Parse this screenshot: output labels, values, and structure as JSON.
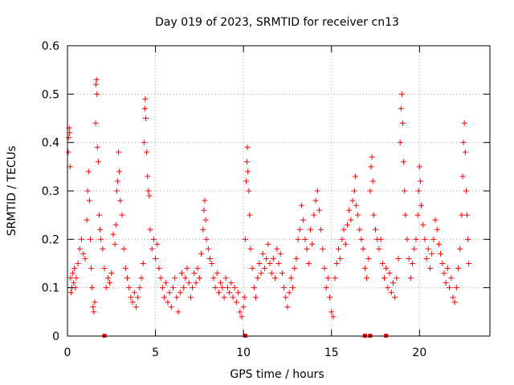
{
  "chart_data": {
    "type": "scatter",
    "title": "Day 019 of 2023, SRMTID for receiver cn13",
    "xlabel": "GPS time / hours",
    "ylabel": "SRMTID / TECUs",
    "xlim": [
      0,
      24
    ],
    "ylim": [
      0,
      0.6
    ],
    "x_ticks": [
      0,
      5,
      10,
      15,
      20
    ],
    "x_tick_labels": [
      "0",
      "5",
      "10",
      "15",
      "20"
    ],
    "y_ticks": [
      0,
      0.1,
      0.2,
      0.3,
      0.4,
      0.5,
      0.6
    ],
    "y_tick_labels": [
      "0",
      "0.1",
      "0.2",
      "0.3",
      "0.4",
      "0.5",
      "0.6"
    ],
    "grid": true,
    "marker": "+",
    "color": "#ff0000",
    "series": [
      {
        "name": "SRMTID",
        "points": [
          [
            0.05,
            0.38
          ],
          [
            0.08,
            0.41
          ],
          [
            0.1,
            0.43
          ],
          [
            0.12,
            0.42
          ],
          [
            0.15,
            0.35
          ],
          [
            0.18,
            0.12
          ],
          [
            0.2,
            0.09
          ],
          [
            0.25,
            0.1
          ],
          [
            0.3,
            0.13
          ],
          [
            0.35,
            0.11
          ],
          [
            0.4,
            0.14
          ],
          [
            0.45,
            0.1
          ],
          [
            0.5,
            0.12
          ],
          [
            0.6,
            0.15
          ],
          [
            0.7,
            0.18
          ],
          [
            0.8,
            0.2
          ],
          [
            0.9,
            0.17
          ],
          [
            1.0,
            0.16
          ],
          [
            1.1,
            0.24
          ],
          [
            1.15,
            0.3
          ],
          [
            1.2,
            0.34
          ],
          [
            1.25,
            0.28
          ],
          [
            1.3,
            0.2
          ],
          [
            1.35,
            0.14
          ],
          [
            1.4,
            0.1
          ],
          [
            1.45,
            0.06
          ],
          [
            1.5,
            0.05
          ],
          [
            1.55,
            0.07
          ],
          [
            1.6,
            0.44
          ],
          [
            1.62,
            0.52
          ],
          [
            1.65,
            0.53
          ],
          [
            1.68,
            0.5
          ],
          [
            1.7,
            0.39
          ],
          [
            1.75,
            0.36
          ],
          [
            1.8,
            0.25
          ],
          [
            1.85,
            0.22
          ],
          [
            1.9,
            0.2
          ],
          [
            2.0,
            0.18
          ],
          [
            2.1,
            0.14
          ],
          [
            2.2,
            0.1
          ],
          [
            2.3,
            0.12
          ],
          [
            2.4,
            0.11
          ],
          [
            2.5,
            0.13
          ],
          [
            2.6,
            0.21
          ],
          [
            2.7,
            0.19
          ],
          [
            2.75,
            0.23
          ],
          [
            2.8,
            0.3
          ],
          [
            2.85,
            0.32
          ],
          [
            2.9,
            0.38
          ],
          [
            2.95,
            0.34
          ],
          [
            3.0,
            0.28
          ],
          [
            3.1,
            0.25
          ],
          [
            3.2,
            0.18
          ],
          [
            3.3,
            0.14
          ],
          [
            3.4,
            0.12
          ],
          [
            3.5,
            0.1
          ],
          [
            3.6,
            0.08
          ],
          [
            3.7,
            0.07
          ],
          [
            3.8,
            0.09
          ],
          [
            3.9,
            0.06
          ],
          [
            4.0,
            0.08
          ],
          [
            4.1,
            0.1
          ],
          [
            4.2,
            0.12
          ],
          [
            4.3,
            0.15
          ],
          [
            4.35,
            0.4
          ],
          [
            4.4,
            0.47
          ],
          [
            4.42,
            0.49
          ],
          [
            4.45,
            0.45
          ],
          [
            4.5,
            0.38
          ],
          [
            4.55,
            0.33
          ],
          [
            4.6,
            0.3
          ],
          [
            4.65,
            0.29
          ],
          [
            4.7,
            0.22
          ],
          [
            4.8,
            0.18
          ],
          [
            4.9,
            0.2
          ],
          [
            5.0,
            0.16
          ],
          [
            5.1,
            0.19
          ],
          [
            5.2,
            0.14
          ],
          [
            5.3,
            0.12
          ],
          [
            5.4,
            0.1
          ],
          [
            5.5,
            0.08
          ],
          [
            5.6,
            0.11
          ],
          [
            5.7,
            0.07
          ],
          [
            5.8,
            0.09
          ],
          [
            5.9,
            0.06
          ],
          [
            6.0,
            0.1
          ],
          [
            6.1,
            0.12
          ],
          [
            6.2,
            0.08
          ],
          [
            6.3,
            0.05
          ],
          [
            6.4,
            0.09
          ],
          [
            6.5,
            0.13
          ],
          [
            6.6,
            0.1
          ],
          [
            6.7,
            0.12
          ],
          [
            6.8,
            0.14
          ],
          [
            6.9,
            0.11
          ],
          [
            7.0,
            0.08
          ],
          [
            7.1,
            0.1
          ],
          [
            7.2,
            0.13
          ],
          [
            7.3,
            0.11
          ],
          [
            7.4,
            0.14
          ],
          [
            7.5,
            0.12
          ],
          [
            7.6,
            0.17
          ],
          [
            7.7,
            0.22
          ],
          [
            7.75,
            0.26
          ],
          [
            7.8,
            0.28
          ],
          [
            7.85,
            0.24
          ],
          [
            7.9,
            0.2
          ],
          [
            8.0,
            0.18
          ],
          [
            8.1,
            0.16
          ],
          [
            8.2,
            0.15
          ],
          [
            8.3,
            0.12
          ],
          [
            8.4,
            0.1
          ],
          [
            8.5,
            0.13
          ],
          [
            8.6,
            0.09
          ],
          [
            8.7,
            0.11
          ],
          [
            8.8,
            0.1
          ],
          [
            8.9,
            0.08
          ],
          [
            9.0,
            0.12
          ],
          [
            9.1,
            0.1
          ],
          [
            9.2,
            0.09
          ],
          [
            9.3,
            0.11
          ],
          [
            9.4,
            0.08
          ],
          [
            9.5,
            0.1
          ],
          [
            9.6,
            0.07
          ],
          [
            9.7,
            0.09
          ],
          [
            9.8,
            0.05
          ],
          [
            9.9,
            0.04
          ],
          [
            10.0,
            0.06
          ],
          [
            10.05,
            0.08
          ],
          [
            10.1,
            0.2
          ],
          [
            10.15,
            0.32
          ],
          [
            10.2,
            0.36
          ],
          [
            10.22,
            0.39
          ],
          [
            10.25,
            0.34
          ],
          [
            10.3,
            0.3
          ],
          [
            10.35,
            0.25
          ],
          [
            10.4,
            0.18
          ],
          [
            10.5,
            0.14
          ],
          [
            10.6,
            0.1
          ],
          [
            10.7,
            0.08
          ],
          [
            10.8,
            0.12
          ],
          [
            10.9,
            0.15
          ],
          [
            11.0,
            0.13
          ],
          [
            11.1,
            0.17
          ],
          [
            11.2,
            0.14
          ],
          [
            11.3,
            0.16
          ],
          [
            11.4,
            0.19
          ],
          [
            11.5,
            0.15
          ],
          [
            11.6,
            0.13
          ],
          [
            11.7,
            0.16
          ],
          [
            11.8,
            0.12
          ],
          [
            11.9,
            0.18
          ],
          [
            12.0,
            0.15
          ],
          [
            12.1,
            0.17
          ],
          [
            12.2,
            0.13
          ],
          [
            12.3,
            0.1
          ],
          [
            12.4,
            0.08
          ],
          [
            12.5,
            0.06
          ],
          [
            12.6,
            0.09
          ],
          [
            12.7,
            0.12
          ],
          [
            12.8,
            0.1
          ],
          [
            12.9,
            0.14
          ],
          [
            13.0,
            0.16
          ],
          [
            13.1,
            0.2
          ],
          [
            13.2,
            0.22
          ],
          [
            13.3,
            0.27
          ],
          [
            13.4,
            0.24
          ],
          [
            13.5,
            0.2
          ],
          [
            13.6,
            0.18
          ],
          [
            13.7,
            0.15
          ],
          [
            13.8,
            0.22
          ],
          [
            13.9,
            0.19
          ],
          [
            14.0,
            0.25
          ],
          [
            14.1,
            0.28
          ],
          [
            14.2,
            0.3
          ],
          [
            14.3,
            0.26
          ],
          [
            14.4,
            0.22
          ],
          [
            14.5,
            0.18
          ],
          [
            14.6,
            0.14
          ],
          [
            14.7,
            0.1
          ],
          [
            14.8,
            0.12
          ],
          [
            14.9,
            0.08
          ],
          [
            15.0,
            0.05
          ],
          [
            15.1,
            0.04
          ],
          [
            15.2,
            0.12
          ],
          [
            15.3,
            0.15
          ],
          [
            15.4,
            0.18
          ],
          [
            15.5,
            0.16
          ],
          [
            15.6,
            0.2
          ],
          [
            15.7,
            0.22
          ],
          [
            15.8,
            0.19
          ],
          [
            15.9,
            0.23
          ],
          [
            16.0,
            0.26
          ],
          [
            16.1,
            0.24
          ],
          [
            16.2,
            0.28
          ],
          [
            16.3,
            0.3
          ],
          [
            16.35,
            0.33
          ],
          [
            16.4,
            0.27
          ],
          [
            16.5,
            0.25
          ],
          [
            16.6,
            0.22
          ],
          [
            16.7,
            0.2
          ],
          [
            16.8,
            0.18
          ],
          [
            16.9,
            0.14
          ],
          [
            17.0,
            0.12
          ],
          [
            17.1,
            0.16
          ],
          [
            17.2,
            0.3
          ],
          [
            17.25,
            0.35
          ],
          [
            17.3,
            0.37
          ],
          [
            17.35,
            0.32
          ],
          [
            17.4,
            0.25
          ],
          [
            17.5,
            0.22
          ],
          [
            17.6,
            0.2
          ],
          [
            17.7,
            0.18
          ],
          [
            17.8,
            0.2
          ],
          [
            17.9,
            0.15
          ],
          [
            18.0,
            0.12
          ],
          [
            18.1,
            0.14
          ],
          [
            18.2,
            0.1
          ],
          [
            18.3,
            0.13
          ],
          [
            18.4,
            0.09
          ],
          [
            18.5,
            0.11
          ],
          [
            18.6,
            0.08
          ],
          [
            18.7,
            0.12
          ],
          [
            18.8,
            0.16
          ],
          [
            18.9,
            0.4
          ],
          [
            18.95,
            0.47
          ],
          [
            19.0,
            0.5
          ],
          [
            19.05,
            0.44
          ],
          [
            19.1,
            0.36
          ],
          [
            19.15,
            0.3
          ],
          [
            19.2,
            0.25
          ],
          [
            19.3,
            0.2
          ],
          [
            19.4,
            0.16
          ],
          [
            19.5,
            0.12
          ],
          [
            19.6,
            0.15
          ],
          [
            19.7,
            0.18
          ],
          [
            19.8,
            0.2
          ],
          [
            19.9,
            0.25
          ],
          [
            19.95,
            0.3
          ],
          [
            20.0,
            0.35
          ],
          [
            20.05,
            0.32
          ],
          [
            20.1,
            0.27
          ],
          [
            20.2,
            0.23
          ],
          [
            20.3,
            0.2
          ],
          [
            20.4,
            0.16
          ],
          [
            20.5,
            0.18
          ],
          [
            20.6,
            0.14
          ],
          [
            20.7,
            0.17
          ],
          [
            20.8,
            0.2
          ],
          [
            20.9,
            0.24
          ],
          [
            21.0,
            0.22
          ],
          [
            21.1,
            0.19
          ],
          [
            21.2,
            0.17
          ],
          [
            21.3,
            0.15
          ],
          [
            21.4,
            0.13
          ],
          [
            21.5,
            0.11
          ],
          [
            21.6,
            0.14
          ],
          [
            21.7,
            0.1
          ],
          [
            21.8,
            0.12
          ],
          [
            21.9,
            0.08
          ],
          [
            22.0,
            0.07
          ],
          [
            22.1,
            0.1
          ],
          [
            22.2,
            0.14
          ],
          [
            22.3,
            0.18
          ],
          [
            22.4,
            0.25
          ],
          [
            22.45,
            0.33
          ],
          [
            22.5,
            0.4
          ],
          [
            22.55,
            0.44
          ],
          [
            22.6,
            0.38
          ],
          [
            22.65,
            0.3
          ],
          [
            22.7,
            0.25
          ],
          [
            22.75,
            0.2
          ],
          [
            22.8,
            0.15
          ]
        ]
      }
    ],
    "baseline_markers": {
      "name": "zero-value markers",
      "points": [
        [
          2.1,
          0
        ],
        [
          10.1,
          0
        ],
        [
          16.9,
          0
        ],
        [
          17.2,
          0
        ],
        [
          18.1,
          0
        ]
      ]
    }
  }
}
